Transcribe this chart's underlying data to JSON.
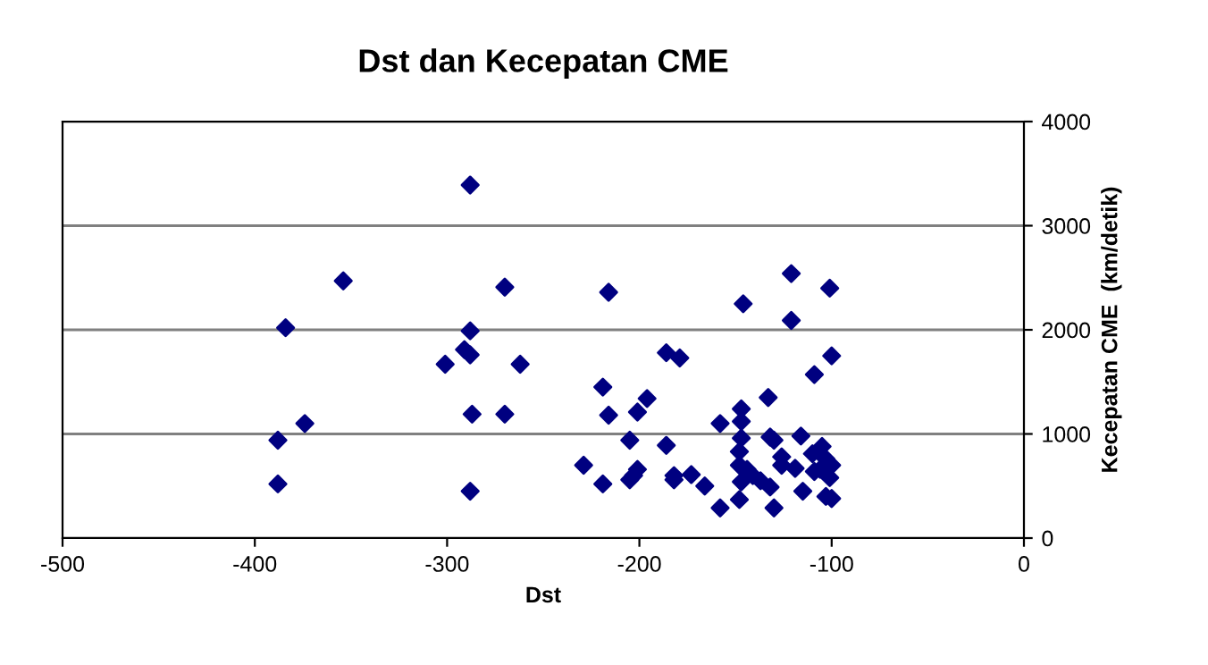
{
  "chart_data": {
    "type": "scatter",
    "title": "Dst dan Kecepatan CME",
    "xlabel": "Dst",
    "ylabel": "Kecepatan CME  (km/detik)",
    "xlim": [
      -500,
      0
    ],
    "xticks": [
      -500,
      -400,
      -300,
      -200,
      -100,
      0
    ],
    "ylim": [
      0,
      4000
    ],
    "yticks": [
      0,
      1000,
      2000,
      3000,
      4000
    ],
    "grid": "y",
    "marker": "diamond",
    "series": [
      {
        "color": "#000080",
        "x": [
          -288,
          -354,
          -270,
          -384,
          -288,
          -291,
          -288,
          -301,
          -262,
          -287,
          -270,
          -374,
          -388,
          -388,
          -288,
          -216,
          -121,
          -146,
          -121,
          -186,
          -179,
          -219,
          -196,
          -216,
          -201,
          -133,
          -147,
          -147,
          -158,
          -205,
          -186,
          -147,
          -132,
          -130,
          -116,
          -229,
          -219,
          -205,
          -201,
          -203,
          -182,
          -182,
          -173,
          -166,
          -158,
          -148,
          -147,
          -148,
          -148,
          -144,
          -141,
          -137,
          -132,
          -130,
          -126,
          -126,
          -119,
          -115,
          -101,
          -100,
          -109,
          -105,
          -110,
          -100,
          -109,
          -101,
          -103,
          -100,
          -106,
          -103
        ],
        "values": [
          3390,
          2470,
          2410,
          2020,
          1990,
          1810,
          1760,
          1670,
          1670,
          1190,
          1190,
          1100,
          940,
          520,
          450,
          2360,
          2540,
          2250,
          2090,
          1780,
          1730,
          1450,
          1340,
          1180,
          1210,
          1350,
          1240,
          1120,
          1100,
          940,
          890,
          960,
          970,
          940,
          980,
          700,
          520,
          560,
          660,
          600,
          560,
          600,
          610,
          500,
          290,
          370,
          540,
          830,
          700,
          660,
          600,
          550,
          490,
          290,
          780,
          700,
          670,
          450,
          2400,
          1750,
          1570,
          880,
          810,
          700,
          640,
          580,
          400,
          380,
          660,
          760
        ]
      }
    ]
  }
}
